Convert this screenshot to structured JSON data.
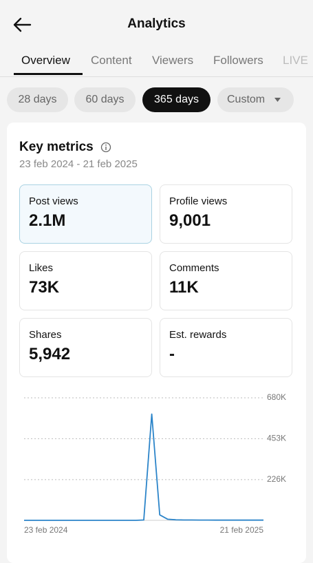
{
  "header": {
    "title": "Analytics"
  },
  "tabs": [
    "Overview",
    "Content",
    "Viewers",
    "Followers",
    "LIVE"
  ],
  "periods": [
    "28 days",
    "60 days",
    "365 days",
    "Custom"
  ],
  "card": {
    "title": "Key metrics",
    "date_range": "23 feb 2024 - 21 feb 2025"
  },
  "metrics": [
    {
      "label": "Post views",
      "value": "2.1M"
    },
    {
      "label": "Profile views",
      "value": "9,001"
    },
    {
      "label": "Likes",
      "value": "73K"
    },
    {
      "label": "Comments",
      "value": "11K"
    },
    {
      "label": "Shares",
      "value": "5,942"
    },
    {
      "label": "Est. rewards",
      "value": "-"
    }
  ],
  "chart_data": {
    "type": "line",
    "categories": [
      "23 feb 2024",
      null,
      null,
      null,
      null,
      null,
      null,
      null,
      null,
      null,
      null,
      null,
      null,
      null,
      null,
      null,
      null,
      null,
      null,
      null,
      null,
      null,
      null,
      null,
      null,
      null,
      null,
      null,
      null,
      null,
      "21 feb 2025"
    ],
    "series": [
      {
        "name": "Post views",
        "color": "#2b84c9",
        "values": [
          0,
          0,
          0,
          0,
          0,
          0,
          0,
          0,
          0,
          0,
          0,
          0,
          0,
          0,
          0,
          2000,
          590000,
          30000,
          6000,
          3000,
          2000,
          2000,
          1500,
          1500,
          1000,
          1000,
          1000,
          1000,
          1000,
          1000,
          1000
        ]
      }
    ],
    "ylim": [
      0,
      680000
    ],
    "yticks": [
      {
        "value": 226000,
        "label": "226K"
      },
      {
        "value": 453000,
        "label": "453K"
      },
      {
        "value": 680000,
        "label": "680K"
      }
    ],
    "grid": true
  }
}
